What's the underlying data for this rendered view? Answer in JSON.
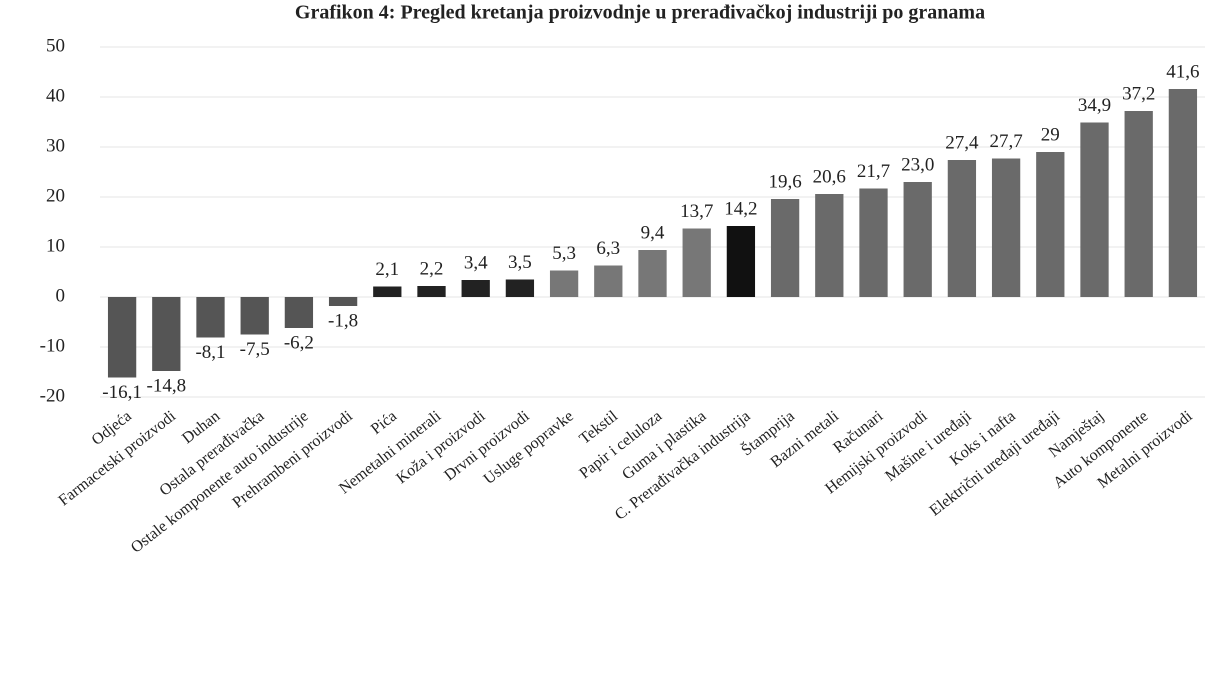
{
  "chart_data": {
    "type": "bar",
    "title": "Grafikon 4: Pregled kretanja proizvodnje u prerađivačkoj industriji po granama",
    "categories": [
      "Odjeća",
      "Farmacetski proizvodi",
      "Duhan",
      "Ostala prerađivačka",
      "Ostale komponente auto industrije",
      "Prehrambeni proizvodi",
      "Pića",
      "Nemetalni minerali",
      "Koža i proizvodi",
      "Drvni proizvodi",
      "Usluge popravke",
      "Tekstil",
      "Papir i celuloza",
      "Guma i plastika",
      "C. Prerađivačka industrija",
      "Štamprija",
      "Bazni metali",
      "Računari",
      "Hemijski proizvodi",
      "Mašine i uređaji",
      "Koks i nafta",
      "Električni uređaji uređaji",
      "Namještaj",
      "Auto komponente",
      "Metalni proizvodi"
    ],
    "values": [
      -16.1,
      -14.8,
      -8.1,
      -7.5,
      -6.2,
      -1.8,
      2.1,
      2.2,
      3.4,
      3.5,
      5.3,
      6.3,
      9.4,
      13.7,
      14.2,
      19.6,
      20.6,
      21.7,
      23.0,
      27.4,
      27.7,
      29,
      34.9,
      37.2,
      41.6
    ],
    "value_labels": [
      "-16,1",
      "-14,8",
      "-8,1",
      "-7,5",
      "-6,2",
      "-1,8",
      "2,1",
      "2,2",
      "3,4",
      "3,5",
      "5,3",
      "6,3",
      "9,4",
      "13,7",
      "14,2",
      "19,6",
      "20,6",
      "21,7",
      "23,0",
      "27,4",
      "27,7",
      "29",
      "34,9",
      "37,2",
      "41,6"
    ],
    "colors": [
      "#555555",
      "#555555",
      "#555555",
      "#555555",
      "#555555",
      "#555555",
      "#222222",
      "#222222",
      "#222222",
      "#222222",
      "#777777",
      "#777777",
      "#777777",
      "#777777",
      "#111111",
      "#6a6a6a",
      "#6a6a6a",
      "#6a6a6a",
      "#6a6a6a",
      "#6a6a6a",
      "#6a6a6a",
      "#6a6a6a",
      "#6a6a6a",
      "#6a6a6a",
      "#6a6a6a"
    ],
    "ylim": [
      -20,
      50
    ],
    "yticks": [
      -20,
      -10,
      0,
      10,
      20,
      30,
      40,
      50
    ],
    "grid": true
  }
}
